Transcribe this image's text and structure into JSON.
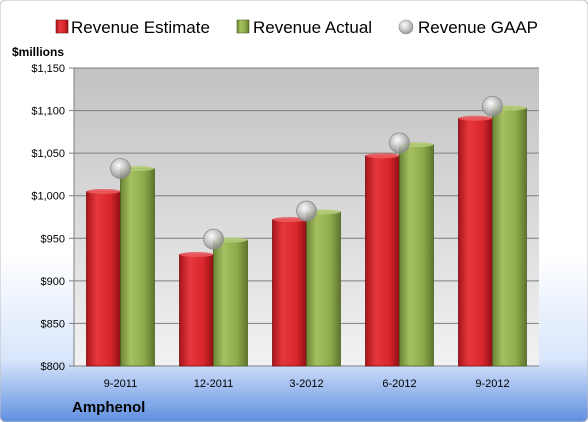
{
  "chart_data": {
    "type": "bar",
    "title": "",
    "company": "Amphenol",
    "ylabel": "$millions",
    "xlabel": "",
    "categories": [
      "9-2011",
      "12-2011",
      "3-2012",
      "6-2012",
      "9-2012"
    ],
    "ylim": [
      800,
      1150
    ],
    "yticks": [
      800,
      850,
      900,
      950,
      1000,
      1050,
      1100,
      1150
    ],
    "ytick_labels": [
      "$800",
      "$850",
      "$900",
      "$950",
      "$1,000",
      "$1,050",
      "$1,100",
      "$1,150"
    ],
    "grid": true,
    "legend_position": "top",
    "series": [
      {
        "name": "Revenue Estimate",
        "kind": "bar",
        "color": "#d9262c",
        "values": [
          1005,
          931,
          972,
          1047,
          1091
        ]
      },
      {
        "name": "Revenue Actual",
        "kind": "bar",
        "color": "#8faa4b",
        "values": [
          1032,
          948,
          981,
          1060,
          1103
        ]
      },
      {
        "name": "Revenue GAAP",
        "kind": "marker",
        "color": "#a6a6a6",
        "values": [
          1032,
          949,
          982,
          1062,
          1105
        ]
      }
    ]
  }
}
